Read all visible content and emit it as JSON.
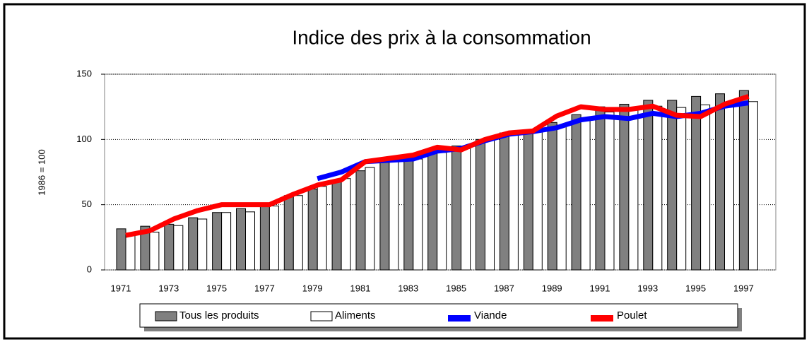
{
  "chart_data": {
    "type": "bar-line",
    "title": "Indice des prix à la consommation",
    "y_label": "1986 = 100",
    "categories": [
      "1971",
      null,
      "1973",
      null,
      "1975",
      null,
      "1977",
      null,
      "1979",
      null,
      "1981",
      null,
      "1983",
      null,
      "1985",
      null,
      "1987",
      null,
      "1989",
      null,
      "1991",
      null,
      "1993",
      null,
      "1995",
      null,
      "1997"
    ],
    "ylim": [
      0,
      150
    ],
    "yticks": [
      0,
      50,
      100,
      150
    ],
    "grid": true,
    "series": [
      {
        "name": "Tous les produits",
        "kind": "bar",
        "color": "#808080",
        "values": [
          31.5,
          33.5,
          35,
          40,
          44,
          47,
          50,
          57,
          62,
          69,
          76,
          83,
          86,
          91,
          95,
          100,
          105,
          107,
          113,
          119,
          125,
          127,
          130,
          130,
          133,
          135,
          137.5
        ]
      },
      {
        "name": "Aliments",
        "kind": "bar",
        "color": "#ffffff",
        "values": [
          27,
          29,
          34,
          39,
          44,
          44.5,
          49,
          57,
          64,
          70,
          78.5,
          83,
          85,
          90,
          93,
          100,
          105,
          107,
          111,
          116,
          121,
          123,
          125.5,
          124.5,
          126.5,
          126.5,
          129
        ]
      },
      {
        "name": "Viande",
        "kind": "line",
        "color": "#0000ff",
        "values": [
          null,
          null,
          null,
          null,
          null,
          null,
          null,
          null,
          70,
          75,
          83,
          84,
          85,
          91,
          93,
          99,
          104,
          106,
          109,
          115,
          117.5,
          116,
          120,
          117.5,
          120,
          125.5,
          128
        ]
      },
      {
        "name": "Poulet",
        "kind": "line",
        "color": "#ff0000",
        "values": [
          26.5,
          30,
          39,
          45.5,
          50,
          50,
          50,
          58,
          65,
          69,
          83,
          85.5,
          88,
          94,
          92,
          100,
          105,
          106.5,
          118,
          125,
          123,
          123,
          125.5,
          118.5,
          117.5,
          127,
          133
        ]
      }
    ]
  }
}
